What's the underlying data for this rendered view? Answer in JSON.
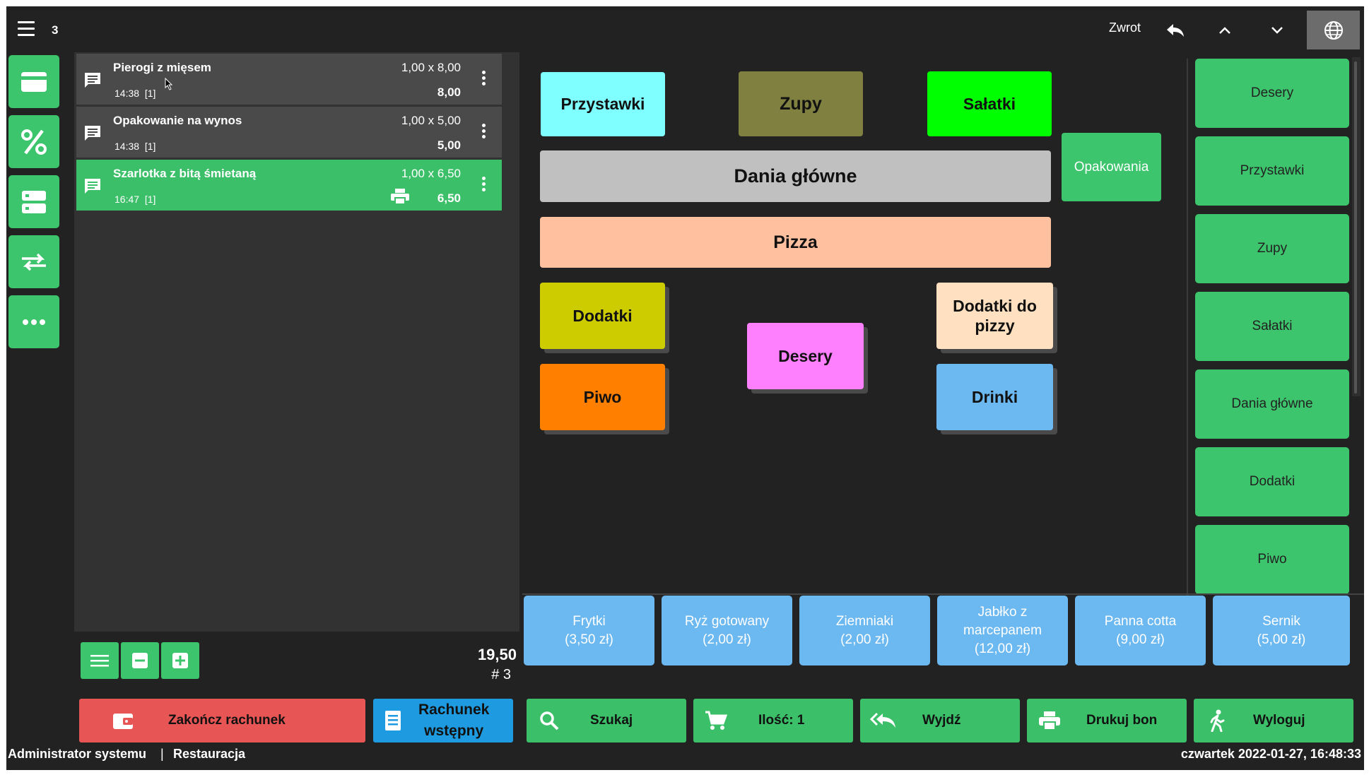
{
  "topbar": {
    "table_number": "3",
    "zwrot_label": "Zwrot"
  },
  "order_items": [
    {
      "name": "Pierogi z mięsem",
      "time": "14:38",
      "count": "[1]",
      "qty": "1,00 x 8,00",
      "price": "8,00"
    },
    {
      "name": "Opakowanie na wynos",
      "time": "14:38",
      "count": "[1]",
      "qty": "1,00 x 5,00",
      "price": "5,00"
    },
    {
      "name": "Szarlotka z bitą śmietaną",
      "time": "16:47",
      "count": "[1]",
      "qty": "1,00 x 6,50",
      "price": "6,50"
    }
  ],
  "order_summary": {
    "total": "19,50",
    "bill_number": "# 3"
  },
  "categories": {
    "przystawki": "Przystawki",
    "zupy": "Zupy",
    "salatki": "Sałatki",
    "opakowania": "Opakowania",
    "dania_glowne": "Dania główne",
    "pizza": "Pizza",
    "dodatki": "Dodatki",
    "desery": "Desery",
    "dodatki_do_pizzy_1": "Dodatki do",
    "dodatki_do_pizzy_2": "pizzy",
    "piwo": "Piwo",
    "drinki": "Drinki"
  },
  "category_colors": {
    "przystawki": "#7fffff",
    "zupy": "#808040",
    "salatki": "#00ff00",
    "opakowania": "#3cc56c",
    "dania_glowne": "#c0c0c0",
    "pizza": "#ffc0a0",
    "dodatki": "#cccc00",
    "desery": "#ff80ff",
    "dodatki_do_pizzy": "#ffe0c0",
    "piwo": "#ff8000",
    "drinki": "#6cb8f0"
  },
  "right_categories": [
    "Desery",
    "Przystawki",
    "Zupy",
    "Sałatki",
    "Dania główne",
    "Dodatki",
    "Piwo"
  ],
  "products": [
    {
      "l1": "Frytki",
      "l2": "(3,50 zł)"
    },
    {
      "l1": "Ryż gotowany",
      "l2": "(2,00 zł)"
    },
    {
      "l1": "Ziemniaki",
      "l2": "(2,00 zł)"
    },
    {
      "l1": "Jabłko z",
      "l2": "marcepanem",
      "l3": "(12,00 zł)"
    },
    {
      "l1": "Panna cotta",
      "l2": "(9,00 zł)"
    },
    {
      "l1": "Sernik",
      "l2": "(5,00 zł)"
    }
  ],
  "actions": {
    "zakoncz": "Zakończ rachunek",
    "rachunek_1": "Rachunek",
    "rachunek_2": "wstępny",
    "szukaj": "Szukaj",
    "ilosc": "Ilość: 1",
    "wyjdz": "Wyjdź",
    "drukuj": "Drukuj bon",
    "wyloguj": "Wyloguj"
  },
  "status_bar": {
    "user": "Administrator systemu",
    "separator": "|",
    "location": "Restauracja",
    "datetime": "czwartek 2022-01-27, 16:48:33"
  },
  "icons": [
    "menu-icon",
    "reply-icon",
    "chevron-up-icon",
    "chevron-down-icon",
    "globe-icon",
    "card-icon",
    "percent-icon",
    "server-icon",
    "swap-icon",
    "more-icon",
    "comment-icon",
    "kebab-icon",
    "printer-icon",
    "list-icon",
    "minus-icon",
    "plus-icon",
    "wallet-icon",
    "receipt-icon",
    "search-icon",
    "cart-icon",
    "reply-all-icon",
    "walk-icon"
  ]
}
